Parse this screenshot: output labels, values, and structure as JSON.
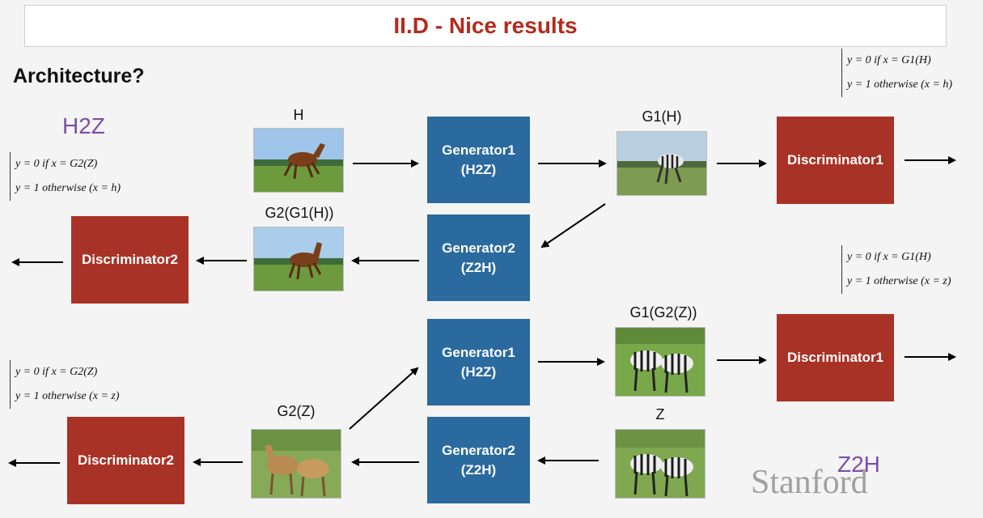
{
  "title": "II.D - Nice results",
  "heading": "Architecture?",
  "labels": {
    "h2z": "H2Z",
    "z2h": "Z2H"
  },
  "boxes": {
    "gen1_top": [
      "Generator1",
      "(H2Z)"
    ],
    "gen2_top": [
      "Generator2",
      "(Z2H)"
    ],
    "gen1_bot": [
      "Generator1",
      "(H2Z)"
    ],
    "gen2_bot": [
      "Generator2",
      "(Z2H)"
    ],
    "disc1_top": "Discriminator1",
    "disc2_top": "Discriminator2",
    "disc1_bot": "Discriminator1",
    "disc2_bot": "Discriminator2"
  },
  "image_labels": {
    "h": "H",
    "g1h": "G1(H)",
    "g2g1h": "G2(G1(H))",
    "g1g2z": "G1(G2(Z))",
    "g2z": "G2(Z)",
    "z": "Z"
  },
  "formulas": {
    "top_right": [
      "y = 0   if    x = G1(H)",
      "y = 1   otherwise    (x = h)"
    ],
    "top_left": [
      "y = 0   if    x = G2(Z)",
      "y = 1   otherwise    (x = h)"
    ],
    "mid_right": [
      "y = 0   if    x = G1(H)",
      "y = 1   otherwise    (x = z)"
    ],
    "bot_left": [
      "y = 0   if    x = G2(Z)",
      "y = 1   otherwise    (x = z)"
    ]
  },
  "watermark": "Stanford",
  "colors": {
    "generator": "#2a6a9e",
    "discriminator": "#a93226",
    "title": "#b52a1c",
    "section_label": "#7b4fa4"
  }
}
